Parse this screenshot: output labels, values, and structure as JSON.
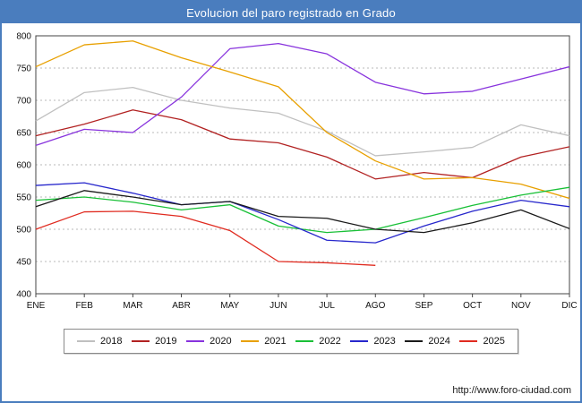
{
  "header": {
    "title": "Evolucion del paro registrado en Grado",
    "bg_color": "#4a7dbe"
  },
  "footer": {
    "url": "http://www.foro-ciudad.com"
  },
  "chart_data": {
    "type": "line",
    "title": "Evolucion del paro registrado en Grado",
    "xlabel": "",
    "ylabel": "",
    "ylim": [
      400,
      800
    ],
    "ytick_step": 50,
    "yticks": [
      400,
      450,
      500,
      550,
      600,
      650,
      700,
      750,
      800
    ],
    "grid": "horizontal-dotted",
    "legend_position": "bottom",
    "categories": [
      "ENE",
      "FEB",
      "MAR",
      "ABR",
      "MAY",
      "JUN",
      "JUL",
      "AGO",
      "SEP",
      "OCT",
      "NOV",
      "DIC"
    ],
    "series": [
      {
        "name": "2018",
        "color": "#c0c0c0",
        "values": [
          668,
          712,
          720,
          700,
          688,
          680,
          652,
          614,
          620,
          627,
          662,
          645
        ]
      },
      {
        "name": "2019",
        "color": "#b22222",
        "values": [
          645,
          663,
          685,
          670,
          640,
          634,
          612,
          578,
          588,
          580,
          612,
          628
        ]
      },
      {
        "name": "2020",
        "color": "#8833dd",
        "values": [
          630,
          655,
          650,
          705,
          780,
          788,
          772,
          728,
          710,
          714,
          733,
          752
        ]
      },
      {
        "name": "2021",
        "color": "#e8a000",
        "values": [
          752,
          786,
          792,
          766,
          744,
          721,
          650,
          606,
          578,
          580,
          570,
          548
        ]
      },
      {
        "name": "2022",
        "color": "#19c037",
        "values": [
          545,
          550,
          542,
          530,
          538,
          505,
          495,
          500,
          518,
          537,
          553,
          565
        ]
      },
      {
        "name": "2023",
        "color": "#2727cc",
        "values": [
          568,
          572,
          556,
          538,
          543,
          515,
          483,
          479,
          505,
          528,
          545,
          535
        ]
      },
      {
        "name": "2024",
        "color": "#1a1a1a",
        "values": [
          535,
          560,
          550,
          538,
          543,
          520,
          517,
          500,
          495,
          510,
          530,
          501
        ]
      },
      {
        "name": "2025",
        "color": "#e02b20",
        "values": [
          500,
          527,
          528,
          520,
          498,
          450,
          448,
          444
        ]
      }
    ]
  }
}
